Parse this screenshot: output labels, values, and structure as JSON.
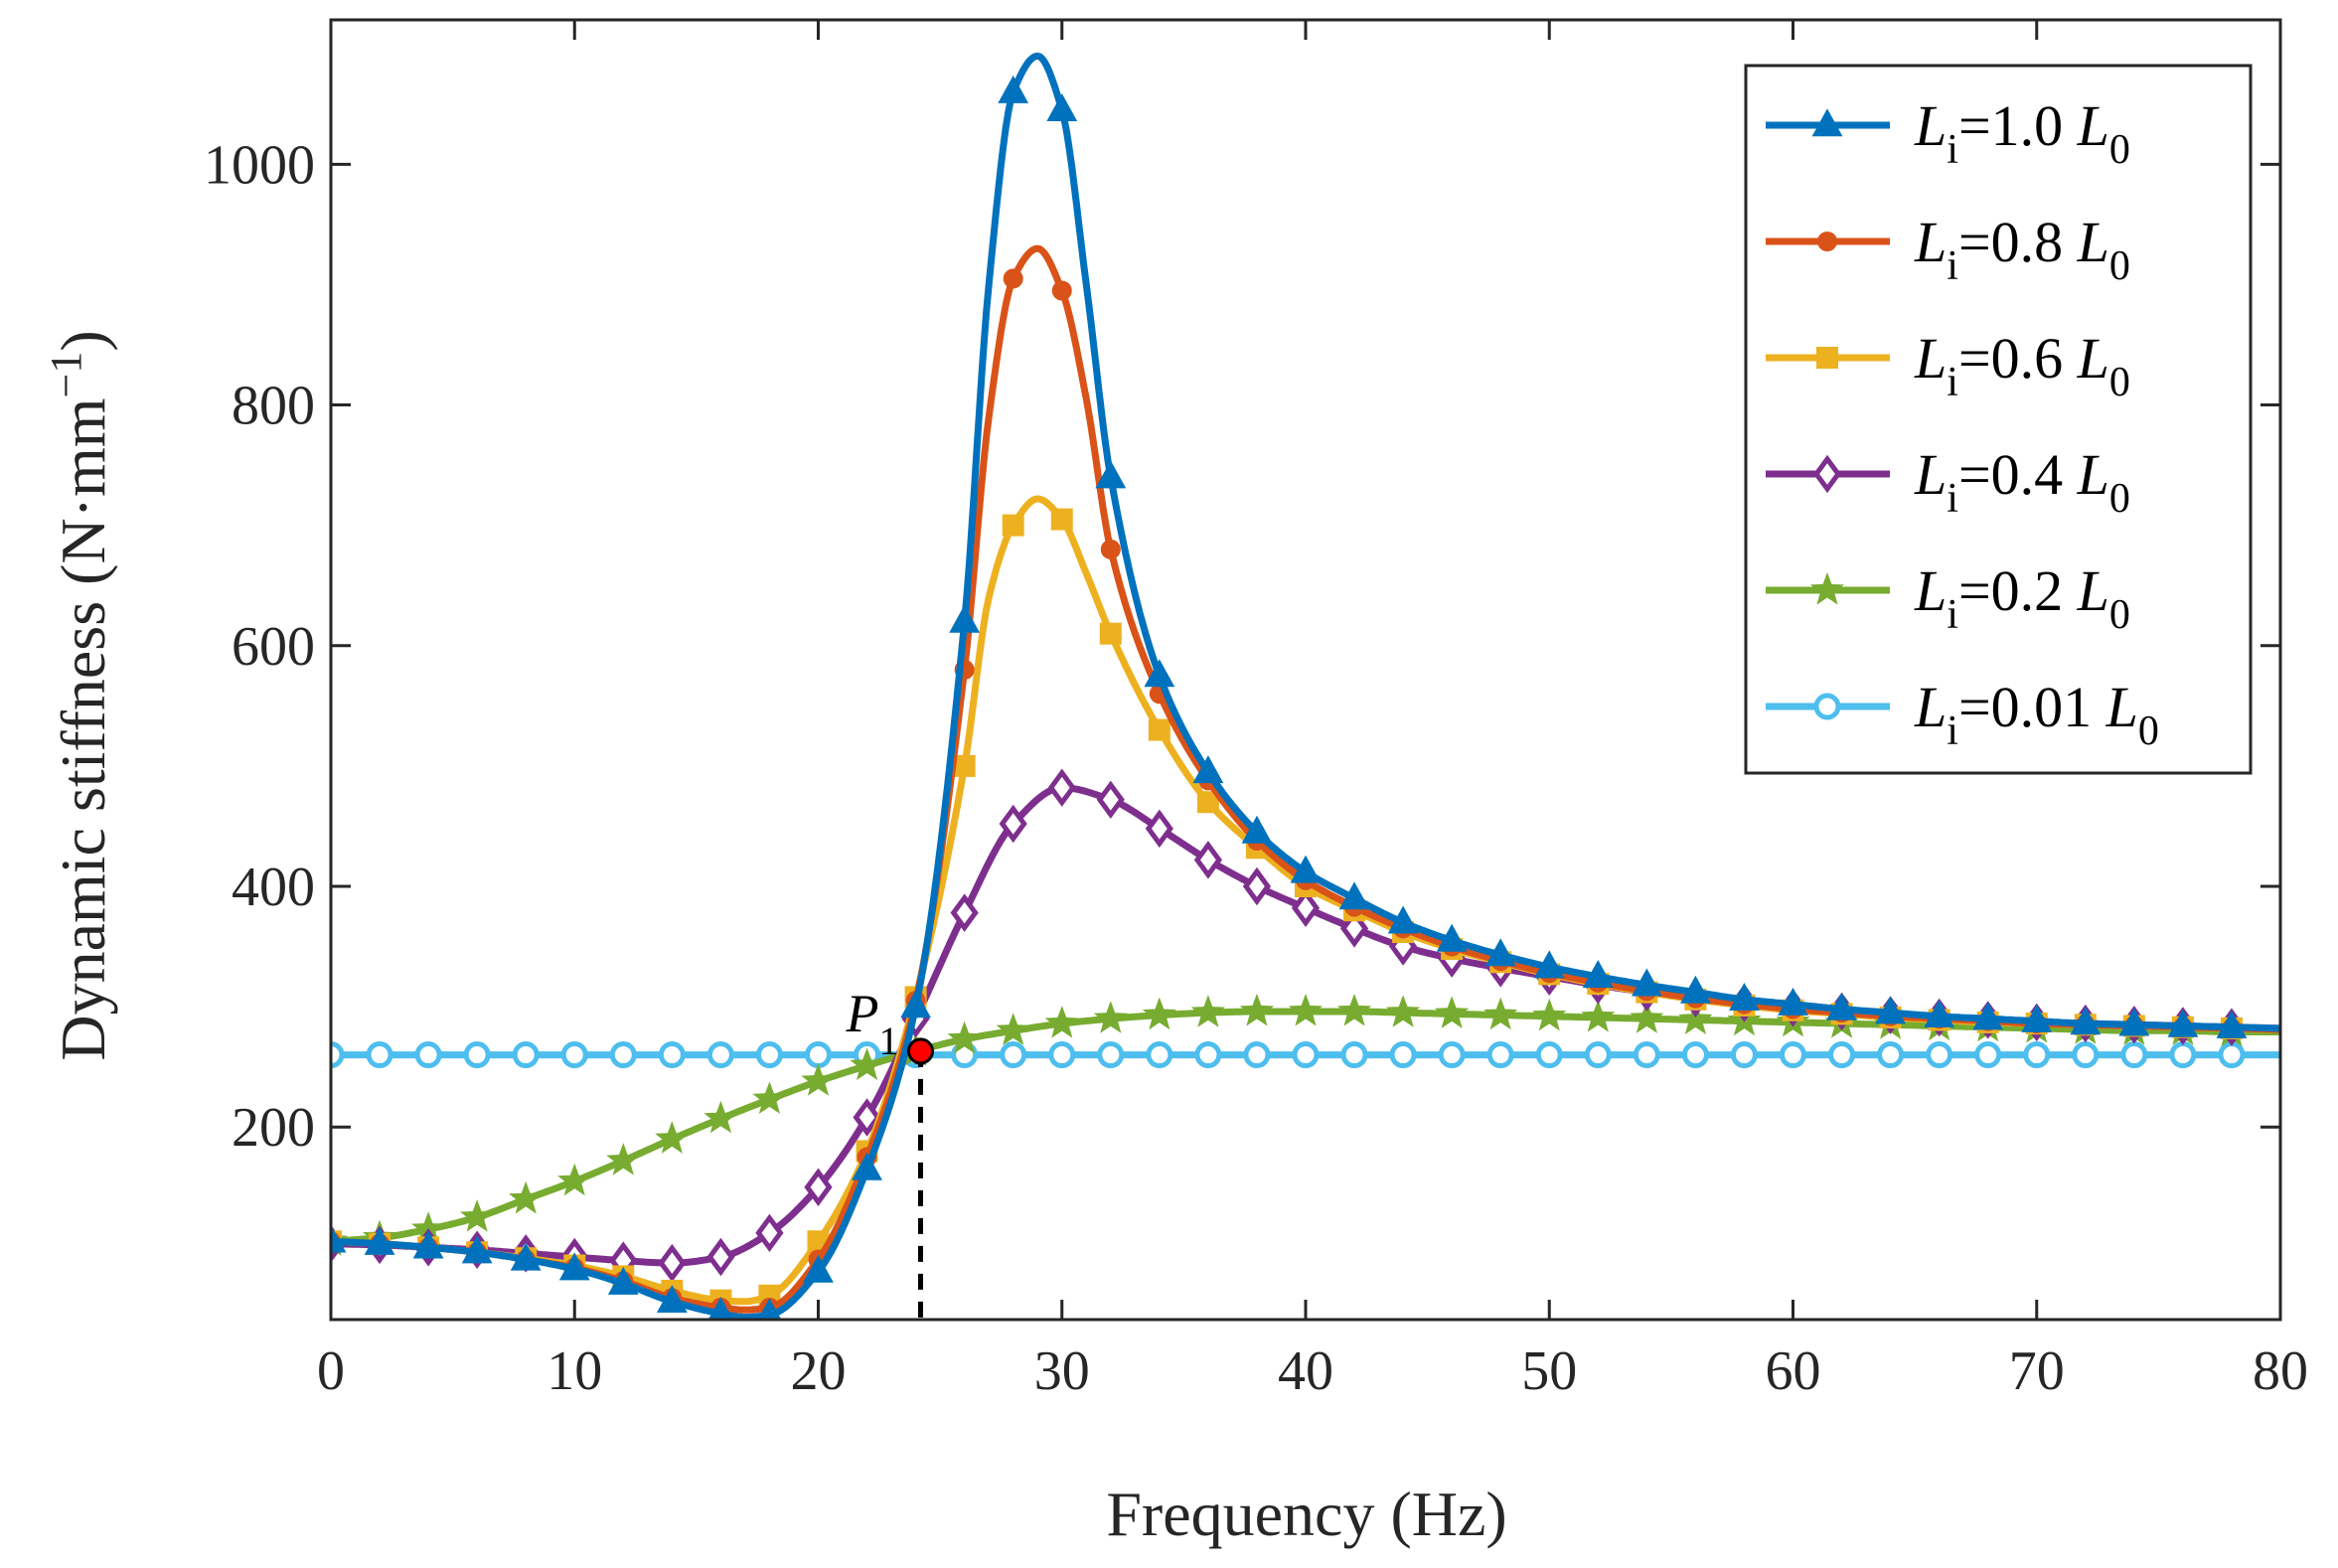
{
  "chart_data": {
    "type": "line",
    "xlabel": "Frequency  (Hz)",
    "ylabel": "Dynamic stiffness  (N·mm",
    "ylabel_superscript": "−1",
    "ylabel_close": ")",
    "xlim": [
      0,
      80
    ],
    "ylim": [
      40,
      1120
    ],
    "xticks": [
      0,
      10,
      20,
      30,
      40,
      50,
      60,
      70,
      80
    ],
    "yticks": [
      200,
      400,
      600,
      800,
      1000
    ],
    "legend_position": "top-right",
    "grid": false,
    "annotation": {
      "label": "P",
      "subscript": "1",
      "x": 24.2,
      "y": 263
    },
    "series": [
      {
        "name": "Li=1.0 L0",
        "legend_parts": {
          "var": "L",
          "sub": "i",
          "mid": "=1.0 ",
          "var2": "L",
          "sub2": "0"
        },
        "color": "#0072BD",
        "marker": "triangle",
        "x": [
          0,
          2,
          4,
          6,
          8,
          10,
          12,
          14,
          16,
          17,
          18,
          20,
          22,
          24,
          26,
          27,
          28,
          29,
          30,
          31,
          32,
          34,
          36,
          38,
          40,
          42,
          44,
          46,
          48,
          50,
          52,
          54,
          56,
          58,
          60,
          62,
          64,
          66,
          68,
          70,
          72,
          74,
          76,
          78,
          80
        ],
        "y": [
          105,
          103,
          100,
          96,
          90,
          82,
          70,
          55,
          45,
          42,
          44,
          80,
          165,
          300,
          620,
          900,
          1060,
          1090,
          1045,
          900,
          740,
          575,
          495,
          445,
          412,
          390,
          370,
          355,
          343,
          333,
          325,
          318,
          312,
          306,
          302,
          298,
          295,
          292,
          290,
          288,
          286,
          285,
          284,
          283,
          282
        ],
        "marker_x": [
          0,
          2,
          4,
          6,
          8,
          10,
          12,
          14,
          16,
          18,
          20,
          22,
          24,
          26,
          28,
          30,
          32,
          34,
          36,
          38,
          40,
          42,
          44,
          46,
          48,
          50,
          52,
          54,
          56,
          58,
          60,
          62,
          64,
          66,
          68,
          70,
          72,
          74,
          76,
          78
        ]
      },
      {
        "name": "Li=0.8 L0",
        "legend_parts": {
          "var": "L",
          "sub": "i",
          "mid": "=0.8 ",
          "var2": "L",
          "sub2": "0"
        },
        "color": "#D95319",
        "marker": "circle",
        "x": [
          0,
          2,
          4,
          6,
          8,
          10,
          12,
          14,
          16,
          17,
          18,
          20,
          22,
          24,
          26,
          27,
          28,
          29,
          30,
          31,
          32,
          34,
          36,
          38,
          40,
          42,
          44,
          46,
          48,
          50,
          52,
          54,
          56,
          58,
          60,
          62,
          64,
          66,
          68,
          70,
          72,
          74,
          76,
          78,
          80
        ],
        "y": [
          105,
          103,
          100,
          96,
          90,
          83,
          72,
          58,
          50,
          48,
          50,
          90,
          175,
          305,
          580,
          790,
          905,
          930,
          895,
          805,
          680,
          560,
          488,
          438,
          405,
          383,
          365,
          350,
          338,
          328,
          320,
          313,
          307,
          302,
          298,
          295,
          292,
          290,
          288,
          286,
          285,
          284,
          283,
          282,
          281
        ],
        "marker_x": [
          0,
          2,
          4,
          6,
          8,
          10,
          12,
          14,
          16,
          18,
          20,
          22,
          24,
          26,
          28,
          30,
          32,
          34,
          36,
          38,
          40,
          42,
          44,
          46,
          48,
          50,
          52,
          54,
          56,
          58,
          60,
          62,
          64,
          66,
          68,
          70,
          72,
          74,
          76,
          78
        ]
      },
      {
        "name": "Li=0.6 L0",
        "legend_parts": {
          "var": "L",
          "sub": "i",
          "mid": "=0.6 ",
          "var2": "L",
          "sub2": "0"
        },
        "color": "#EDB120",
        "marker": "square",
        "x": [
          0,
          2,
          4,
          6,
          8,
          10,
          12,
          14,
          16,
          17,
          18,
          20,
          22,
          24,
          26,
          27,
          28,
          29,
          30,
          31,
          32,
          34,
          36,
          38,
          40,
          42,
          44,
          46,
          48,
          50,
          52,
          54,
          56,
          58,
          60,
          62,
          64,
          66,
          68,
          70,
          72,
          74,
          76,
          78,
          80
        ],
        "y": [
          105,
          103,
          100,
          96,
          91,
          85,
          76,
          64,
          56,
          55,
          60,
          105,
          180,
          308,
          500,
          640,
          700,
          722,
          705,
          660,
          610,
          530,
          470,
          432,
          400,
          380,
          362,
          348,
          337,
          327,
          319,
          312,
          306,
          301,
          297,
          294,
          291,
          289,
          287,
          286,
          285,
          284,
          283,
          282,
          281
        ],
        "marker_x": [
          0,
          2,
          4,
          6,
          8,
          10,
          12,
          14,
          16,
          18,
          20,
          22,
          24,
          26,
          28,
          30,
          32,
          34,
          36,
          38,
          40,
          42,
          44,
          46,
          48,
          50,
          52,
          54,
          56,
          58,
          60,
          62,
          64,
          66,
          68,
          70,
          72,
          74,
          76,
          78
        ]
      },
      {
        "name": "Li=0.4 L0",
        "legend_parts": {
          "var": "L",
          "sub": "i",
          "mid": "=0.4 ",
          "var2": "L",
          "sub2": "0"
        },
        "color": "#7E2F8E",
        "marker": "diamond",
        "x": [
          0,
          2,
          4,
          6,
          8,
          10,
          12,
          14,
          16,
          18,
          20,
          22,
          24,
          26,
          28,
          30,
          32,
          34,
          36,
          38,
          40,
          42,
          44,
          46,
          48,
          50,
          52,
          54,
          56,
          58,
          60,
          62,
          64,
          66,
          68,
          70,
          72,
          74,
          76,
          78,
          80
        ],
        "y": [
          103,
          102,
          100,
          98,
          95,
          92,
          89,
          87,
          92,
          112,
          150,
          208,
          290,
          378,
          452,
          482,
          472,
          448,
          422,
          400,
          382,
          365,
          350,
          340,
          332,
          325,
          318,
          312,
          307,
          303,
          299,
          296,
          293,
          291,
          289,
          287,
          286,
          285,
          284,
          283,
          282
        ],
        "marker_x": [
          0,
          2,
          4,
          6,
          8,
          10,
          12,
          14,
          16,
          18,
          20,
          22,
          24,
          26,
          28,
          30,
          32,
          34,
          36,
          38,
          40,
          42,
          44,
          46,
          48,
          50,
          52,
          54,
          56,
          58,
          60,
          62,
          64,
          66,
          68,
          70,
          72,
          74,
          76,
          78
        ]
      },
      {
        "name": "Li=0.2 L0",
        "legend_parts": {
          "var": "L",
          "sub": "i",
          "mid": "=0.2 ",
          "var2": "L",
          "sub2": "0"
        },
        "color": "#77AC30",
        "marker": "star",
        "x": [
          0,
          2,
          4,
          6,
          8,
          10,
          12,
          14,
          16,
          18,
          20,
          22,
          24,
          26,
          28,
          30,
          32,
          34,
          36,
          38,
          40,
          42,
          44,
          46,
          48,
          50,
          52,
          54,
          56,
          58,
          60,
          62,
          64,
          66,
          68,
          70,
          72,
          74,
          76,
          78,
          80
        ],
        "y": [
          105,
          108,
          115,
          125,
          140,
          155,
          172,
          190,
          207,
          223,
          238,
          251,
          263,
          273,
          280,
          286,
          290,
          293,
          295,
          296,
          296,
          296,
          295,
          294,
          293,
          292,
          291,
          290,
          289,
          288,
          287,
          286,
          285,
          284,
          283,
          282,
          281,
          280,
          280,
          279,
          279
        ],
        "marker_x": [
          0,
          2,
          4,
          6,
          8,
          10,
          12,
          14,
          16,
          18,
          20,
          22,
          24,
          26,
          28,
          30,
          32,
          34,
          36,
          38,
          40,
          42,
          44,
          46,
          48,
          50,
          52,
          54,
          56,
          58,
          60,
          62,
          64,
          66,
          68,
          70,
          72,
          74,
          76,
          78
        ]
      },
      {
        "name": "Li=0.01 L0",
        "legend_parts": {
          "var": "L",
          "sub": "i",
          "mid": "=0.01 ",
          "var2": "L",
          "sub2": "0"
        },
        "color": "#4DBEEE",
        "marker": "open-circle",
        "x": [
          0,
          80
        ],
        "y": [
          260,
          260
        ],
        "marker_x": [
          0,
          2,
          4,
          6,
          8,
          10,
          12,
          14,
          16,
          18,
          20,
          22,
          24,
          26,
          28,
          30,
          32,
          34,
          36,
          38,
          40,
          42,
          44,
          46,
          48,
          50,
          52,
          54,
          56,
          58,
          60,
          62,
          64,
          66,
          68,
          70,
          72,
          74,
          76,
          78
        ]
      }
    ]
  }
}
